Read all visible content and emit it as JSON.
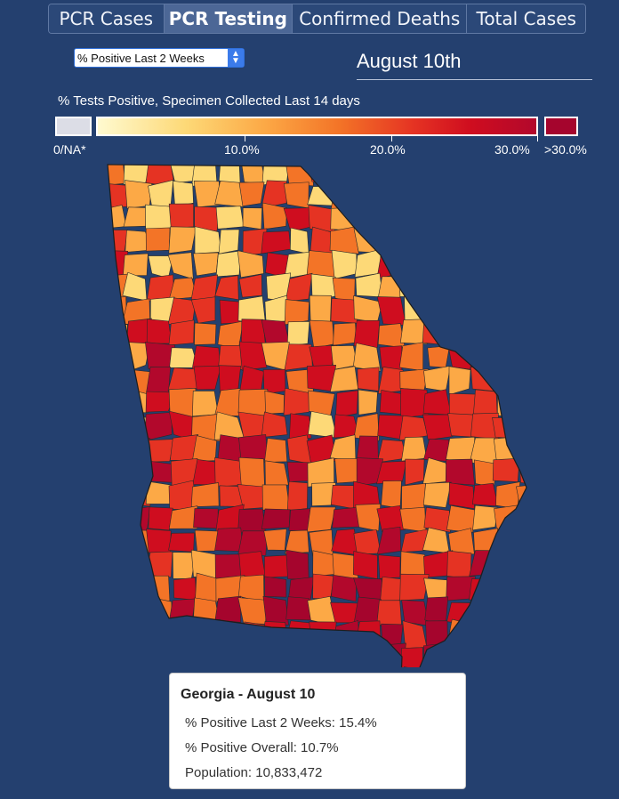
{
  "tabs": [
    {
      "label": "PCR Cases",
      "active": false
    },
    {
      "label": "PCR Testing",
      "active": true
    },
    {
      "label": "Confirmed Deaths",
      "active": false
    },
    {
      "label": "Total Cases",
      "active": false
    }
  ],
  "metric_select": {
    "value": "% Positive Last 2 Weeks"
  },
  "date_title": "August 10th",
  "legend": {
    "title": "% Tests Positive, Specimen Collected Last 14 days",
    "na_label": "0/NA*",
    "ticks": [
      "10.0%",
      "20.0%",
      "30.0%"
    ],
    "high_label": ">30.0%",
    "colors": {
      "na": "#dcdde6",
      "scale": [
        "#fffad0",
        "#fdd977",
        "#fca946",
        "#f37427",
        "#e53323",
        "#cf0d1f",
        "#b2082c"
      ],
      "high": "#a5052d"
    }
  },
  "map": {
    "region": "Georgia",
    "background": "#24406f",
    "county_border": "#2a2a2a"
  },
  "tooltip": {
    "title": "Georgia - August 10",
    "lines": [
      "% Positive Last 2 Weeks: 15.4%",
      "% Positive Overall: 10.7%",
      "Population: 10,833,472"
    ]
  }
}
